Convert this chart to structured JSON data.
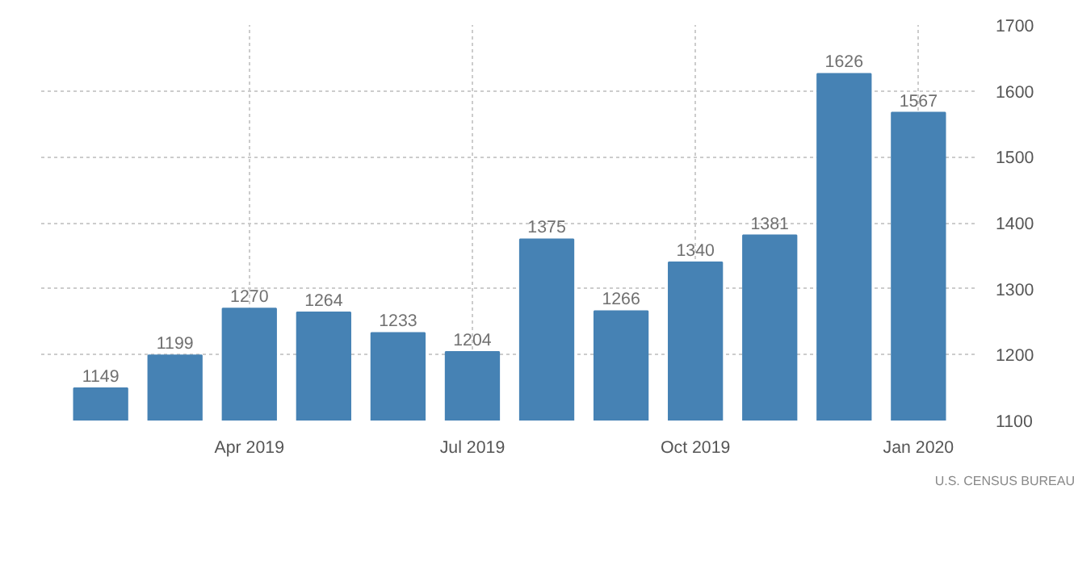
{
  "chart_data": {
    "type": "bar",
    "categories": [
      null,
      null,
      "Apr 2019",
      null,
      null,
      "Jul 2019",
      null,
      null,
      "Oct 2019",
      null,
      null,
      "Jan 2020"
    ],
    "values": [
      1149,
      1199,
      1270,
      1264,
      1233,
      1204,
      1375,
      1266,
      1340,
      1381,
      1626,
      1567
    ],
    "color": "#4682b4",
    "ylim": [
      1100,
      1700
    ],
    "yticks": [
      1100,
      1200,
      1300,
      1400,
      1500,
      1600,
      1700
    ],
    "grid": true,
    "data_labels": true,
    "annotations": [
      "U.S. CENSUS BUREAU"
    ]
  }
}
